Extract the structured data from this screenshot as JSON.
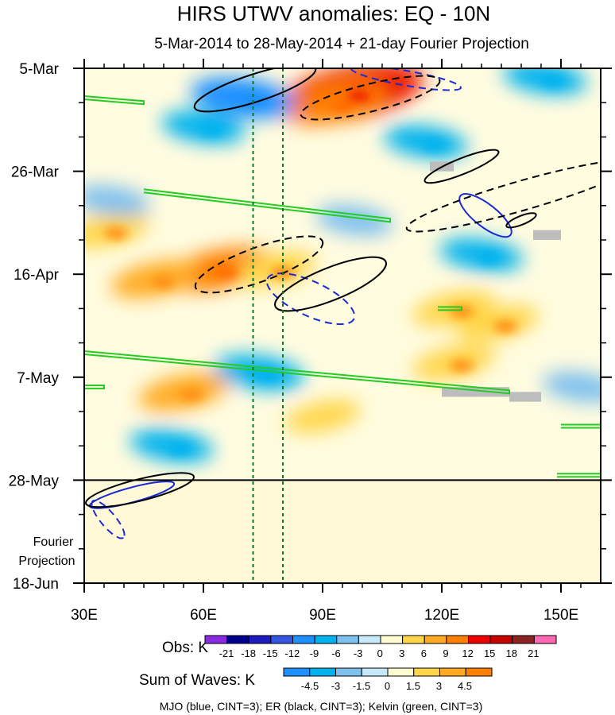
{
  "chart_data": {
    "type": "heatmap",
    "title": "HIRS UTWV anomalies: EQ - 10N",
    "subtitle": "5-Mar-2014 to 28-May-2014 + 21-day Fourier Projection",
    "x_axis": {
      "label": "",
      "range": [
        30,
        160
      ],
      "ticks": [
        30,
        60,
        90,
        120,
        150
      ],
      "tick_labels": [
        "30E",
        "60E",
        "90E",
        "120E",
        "150E"
      ]
    },
    "y_axis": {
      "label": "",
      "range_days": [
        0,
        105
      ],
      "ticks_days": [
        0,
        21,
        42,
        63,
        84,
        105
      ],
      "tick_labels": [
        "5-Mar",
        "26-Mar",
        "16-Apr",
        "7-May",
        "28-May",
        "18-Jun"
      ]
    },
    "projection_label": [
      "Fourier",
      "Projection"
    ],
    "projection_start_day": 84,
    "reference_lines_lon": [
      72.5,
      80
    ],
    "obs_colorbar": {
      "label": "Obs: K",
      "levels": [
        "-21",
        "-18",
        "-15",
        "-12",
        "-9",
        "-6",
        "-3",
        "0",
        "3",
        "6",
        "9",
        "12",
        "15",
        "18",
        "21"
      ],
      "colors": [
        "#8a2be2",
        "#00008b",
        "#1c1cbe",
        "#3355e0",
        "#1e90ff",
        "#00b2ee",
        "#7ec0ee",
        "#c6e8f8",
        "#fffdd0",
        "#ffd54a",
        "#ffaa22",
        "#ff7f00",
        "#ee0000",
        "#c40000",
        "#8b2323",
        "#ff69b4"
      ]
    },
    "waves_colorbar": {
      "label": "Sum of Waves: K",
      "levels": [
        "-4.5",
        "-3",
        "-1.5",
        "0",
        "1.5",
        "3",
        "4.5"
      ],
      "colors": [
        "#1e90ff",
        "#00b2ee",
        "#7ec0ee",
        "#c6e8f8",
        "#fffdd0",
        "#ffd54a",
        "#ffaa22",
        "#ff7f00"
      ]
    },
    "anomaly_features_K": [
      {
        "lon": 97,
        "day": 5,
        "value": 13
      },
      {
        "lon": 93,
        "day": 7,
        "value": 7
      },
      {
        "lon": 64,
        "day": 41,
        "value": 7
      },
      {
        "lon": 48,
        "day": 43,
        "value": 5
      },
      {
        "lon": 78,
        "day": 41,
        "value": 4
      },
      {
        "lon": 36,
        "day": 33,
        "value": 4
      },
      {
        "lon": 123,
        "day": 49,
        "value": 4
      },
      {
        "lon": 134,
        "day": 52,
        "value": 4
      },
      {
        "lon": 55,
        "day": 66,
        "value": 5
      },
      {
        "lon": 90,
        "day": 71,
        "value": 3
      },
      {
        "lon": 123,
        "day": 60,
        "value": 4
      },
      {
        "lon": 70,
        "day": 6,
        "value": -7
      },
      {
        "lon": 116,
        "day": 15,
        "value": -4
      },
      {
        "lon": 74,
        "day": 62,
        "value": -5
      },
      {
        "lon": 60,
        "day": 12,
        "value": -4
      },
      {
        "lon": 37,
        "day": 27,
        "value": -3
      },
      {
        "lon": 52,
        "day": 77,
        "value": -4
      },
      {
        "lon": 130,
        "day": 38,
        "value": -4
      },
      {
        "lon": 98,
        "day": 31,
        "value": -3
      },
      {
        "lon": 146,
        "day": 2,
        "value": -4
      },
      {
        "lon": 155,
        "day": 65,
        "value": -3
      }
    ],
    "wave_contours": [
      {
        "wave": "MJO",
        "color": "blue",
        "sign": "negative",
        "center_lon": 111,
        "center_day": 2,
        "rx": 14,
        "ry": 1.5,
        "rot_deg": 10
      },
      {
        "wave": "MJO",
        "color": "blue",
        "sign": "positive",
        "center_lon": 131,
        "center_day": 30,
        "rx": 8,
        "ry": 2.3,
        "rot_deg": 38
      },
      {
        "wave": "MJO",
        "color": "blue",
        "sign": "negative",
        "center_lon": 87,
        "center_day": 47,
        "rx": 12,
        "ry": 3.5,
        "rot_deg": 25
      },
      {
        "wave": "MJO",
        "color": "blue",
        "sign": "positive",
        "center_lon": 42,
        "center_day": 87,
        "rx": 11,
        "ry": 1.5,
        "rot_deg": -15
      },
      {
        "wave": "MJO",
        "color": "blue",
        "sign": "negative",
        "center_lon": 36,
        "center_day": 92,
        "rx": 6,
        "ry": 1.5,
        "rot_deg": 50
      },
      {
        "wave": "ER",
        "color": "black",
        "sign": "positive",
        "center_lon": 73,
        "center_day": 4,
        "rx": 16,
        "ry": 2.8,
        "rot_deg": -18
      },
      {
        "wave": "ER",
        "color": "black",
        "sign": "negative",
        "center_lon": 102,
        "center_day": 6,
        "rx": 18,
        "ry": 2.8,
        "rot_deg": -14
      },
      {
        "wave": "ER",
        "color": "black",
        "sign": "positive",
        "center_lon": 125,
        "center_day": 20,
        "rx": 10,
        "ry": 1.6,
        "rot_deg": -22
      },
      {
        "wave": "ER",
        "color": "black",
        "sign": "negative",
        "center_lon": 140,
        "center_day": 26,
        "rx": 30,
        "ry": 3,
        "rot_deg": -16
      },
      {
        "wave": "ER",
        "color": "black",
        "sign": "negative",
        "center_lon": 74,
        "center_day": 40,
        "rx": 17,
        "ry": 3.5,
        "rot_deg": -20
      },
      {
        "wave": "ER",
        "color": "black",
        "sign": "positive",
        "center_lon": 92,
        "center_day": 44,
        "rx": 15,
        "ry": 3.3,
        "rot_deg": -22
      },
      {
        "wave": "ER",
        "color": "black",
        "sign": "positive",
        "center_lon": 140,
        "center_day": 31,
        "rx": 4,
        "ry": 0.9,
        "rot_deg": -22
      },
      {
        "wave": "ER",
        "color": "black",
        "sign": "positive",
        "center_lon": 44,
        "center_day": 86,
        "rx": 14,
        "ry": 2.2,
        "rot_deg": -14
      }
    ],
    "kelvin_bands": [
      {
        "lon_start": 30,
        "day_start": 6,
        "lon_end": 45,
        "day_end": 7
      },
      {
        "lon_start": 45,
        "day_start": 25,
        "lon_end": 107,
        "day_end": 31
      },
      {
        "lon_start": 30,
        "day_start": 58,
        "lon_end": 137,
        "day_end": 66
      },
      {
        "lon_start": 30,
        "day_start": 65,
        "lon_end": 35,
        "day_end": 65
      },
      {
        "lon_start": 150,
        "day_start": 73,
        "lon_end": 160,
        "day_end": 73
      },
      {
        "lon_start": 119,
        "day_start": 49,
        "lon_end": 125,
        "day_end": 49
      },
      {
        "lon_start": 149,
        "day_start": 83,
        "lon_end": 160,
        "day_end": 83
      }
    ],
    "missing_data": [
      {
        "lon_start": 117,
        "lon_end": 123,
        "day_start": 19,
        "day_end": 21
      },
      {
        "lon_start": 143,
        "lon_end": 150,
        "day_start": 33,
        "day_end": 35
      },
      {
        "lon_start": 120,
        "lon_end": 137,
        "day_start": 65,
        "day_end": 67
      },
      {
        "lon_start": 137,
        "lon_end": 145,
        "day_start": 66,
        "day_end": 68
      }
    ],
    "footnote": "MJO (blue, CINT=3); ER (black, CINT=3); Kelvin (green, CINT=3)"
  }
}
